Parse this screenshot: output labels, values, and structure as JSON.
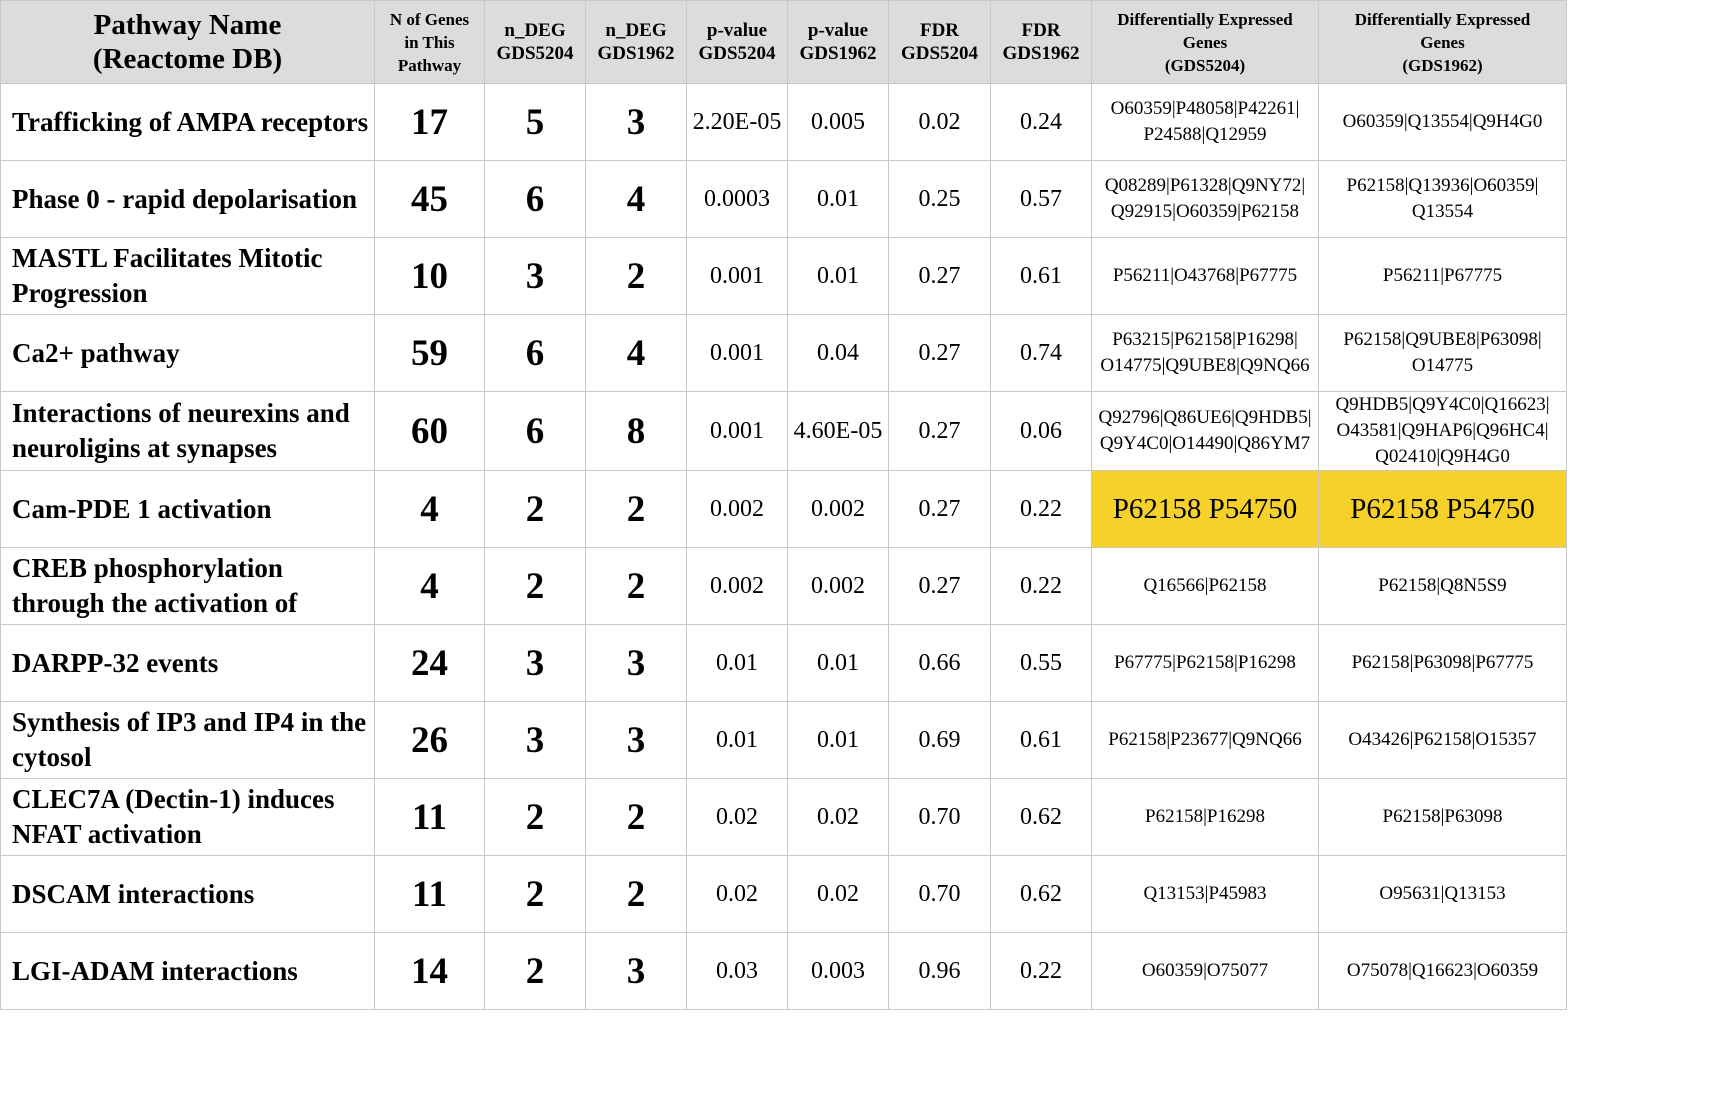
{
  "header": {
    "pathway": [
      "Pathway Name",
      "(Reactome DB)"
    ],
    "n_genes": [
      "N of Genes",
      "in This",
      "Pathway"
    ],
    "ndeg_5204": [
      "n_DEG",
      "GDS5204"
    ],
    "ndeg_1962": [
      "n_DEG",
      "GDS1962"
    ],
    "p_5204": [
      "p-value",
      "GDS5204"
    ],
    "p_1962": [
      "p-value",
      "GDS1962"
    ],
    "fdr_5204": [
      "FDR",
      "GDS5204"
    ],
    "fdr_1962": [
      "FDR",
      "GDS1962"
    ],
    "deg_5204": [
      "Differentially Expressed",
      "Genes",
      "(GDS5204)"
    ],
    "deg_1962": [
      "Differentially Expressed",
      "Genes",
      "(GDS1962)"
    ]
  },
  "highlight_color": "#f5d12a",
  "rows": [
    {
      "pathway": "Trafficking of AMPA receptors",
      "n": "17",
      "ndeg_5204": "5",
      "ndeg_1962": "3",
      "p_5204": "2.20E-05",
      "p_1962": "0.005",
      "fdr_5204": "0.02",
      "fdr_1962": "0.24",
      "genes_5204": "O60359|P48058|P42261|P24588|Q12959",
      "genes_1962": "O60359|Q13554|Q9H4G0"
    },
    {
      "pathway": "Phase 0 - rapid depolarisation",
      "n": "45",
      "ndeg_5204": "6",
      "ndeg_1962": "4",
      "p_5204": "0.0003",
      "p_1962": "0.01",
      "fdr_5204": "0.25",
      "fdr_1962": "0.57",
      "genes_5204": "Q08289|P61328|Q9NY72|Q92915|O60359|P62158",
      "genes_1962": "P62158|Q13936|O60359|Q13554"
    },
    {
      "pathway": "MASTL Facilitates Mitotic Progression",
      "n": "10",
      "ndeg_5204": "3",
      "ndeg_1962": "2",
      "p_5204": "0.001",
      "p_1962": "0.01",
      "fdr_5204": "0.27",
      "fdr_1962": "0.61",
      "genes_5204": "P56211|O43768|P67775",
      "genes_1962": "P56211|P67775"
    },
    {
      "pathway": "Ca2+ pathway",
      "n": "59",
      "ndeg_5204": "6",
      "ndeg_1962": "4",
      "p_5204": "0.001",
      "p_1962": "0.04",
      "fdr_5204": "0.27",
      "fdr_1962": "0.74",
      "genes_5204": "P63215|P62158|P16298|O14775|Q9UBE8|Q9NQ66",
      "genes_1962": "P62158|Q9UBE8|P63098|O14775"
    },
    {
      "pathway": "Interactions of neurexins and neuroligins at synapses",
      "n": "60",
      "ndeg_5204": "6",
      "ndeg_1962": "8",
      "p_5204": "0.001",
      "p_1962": "4.60E-05",
      "fdr_5204": "0.27",
      "fdr_1962": "0.06",
      "genes_5204": "Q92796|Q86UE6|Q9HDB5|Q9Y4C0|O14490|Q86YM7",
      "genes_1962": "Q9HDB5|Q9Y4C0|Q16623|O43581|Q9HAP6|Q96HC4|Q02410|Q9H4G0"
    },
    {
      "pathway": "Cam-PDE 1 activation",
      "n": "4",
      "ndeg_5204": "2",
      "ndeg_1962": "2",
      "p_5204": "0.002",
      "p_1962": "0.002",
      "fdr_5204": "0.27",
      "fdr_1962": "0.22",
      "genes_5204": "P62158 P54750",
      "genes_1962": "P62158 P54750",
      "highlight": true
    },
    {
      "pathway": "CREB phosphorylation through the activation of",
      "n": "4",
      "ndeg_5204": "2",
      "ndeg_1962": "2",
      "p_5204": "0.002",
      "p_1962": "0.002",
      "fdr_5204": "0.27",
      "fdr_1962": "0.22",
      "genes_5204": "Q16566|P62158",
      "genes_1962": "P62158|Q8N5S9"
    },
    {
      "pathway": "DARPP-32 events",
      "n": "24",
      "ndeg_5204": "3",
      "ndeg_1962": "3",
      "p_5204": "0.01",
      "p_1962": "0.01",
      "fdr_5204": "0.66",
      "fdr_1962": "0.55",
      "genes_5204": "P67775|P62158|P16298",
      "genes_1962": "P62158|P63098|P67775"
    },
    {
      "pathway": "Synthesis of IP3 and IP4 in the cytosol",
      "n": "26",
      "ndeg_5204": "3",
      "ndeg_1962": "3",
      "p_5204": "0.01",
      "p_1962": "0.01",
      "fdr_5204": "0.69",
      "fdr_1962": "0.61",
      "genes_5204": "P62158|P23677|Q9NQ66",
      "genes_1962": "O43426|P62158|O15357"
    },
    {
      "pathway": "CLEC7A (Dectin-1) induces NFAT activation",
      "n": "11",
      "ndeg_5204": "2",
      "ndeg_1962": "2",
      "p_5204": "0.02",
      "p_1962": "0.02",
      "fdr_5204": "0.70",
      "fdr_1962": "0.62",
      "genes_5204": "P62158|P16298",
      "genes_1962": "P62158|P63098"
    },
    {
      "pathway": "DSCAM interactions",
      "n": "11",
      "ndeg_5204": "2",
      "ndeg_1962": "2",
      "p_5204": "0.02",
      "p_1962": "0.02",
      "fdr_5204": "0.70",
      "fdr_1962": "0.62",
      "genes_5204": "Q13153|P45983",
      "genes_1962": "O95631|Q13153"
    },
    {
      "pathway": "LGI-ADAM interactions",
      "n": "14",
      "ndeg_5204": "2",
      "ndeg_1962": "3",
      "p_5204": "0.03",
      "p_1962": "0.003",
      "fdr_5204": "0.96",
      "fdr_1962": "0.22",
      "genes_5204": "O60359|O75077",
      "genes_1962": "O75078|Q16623|O60359"
    }
  ]
}
